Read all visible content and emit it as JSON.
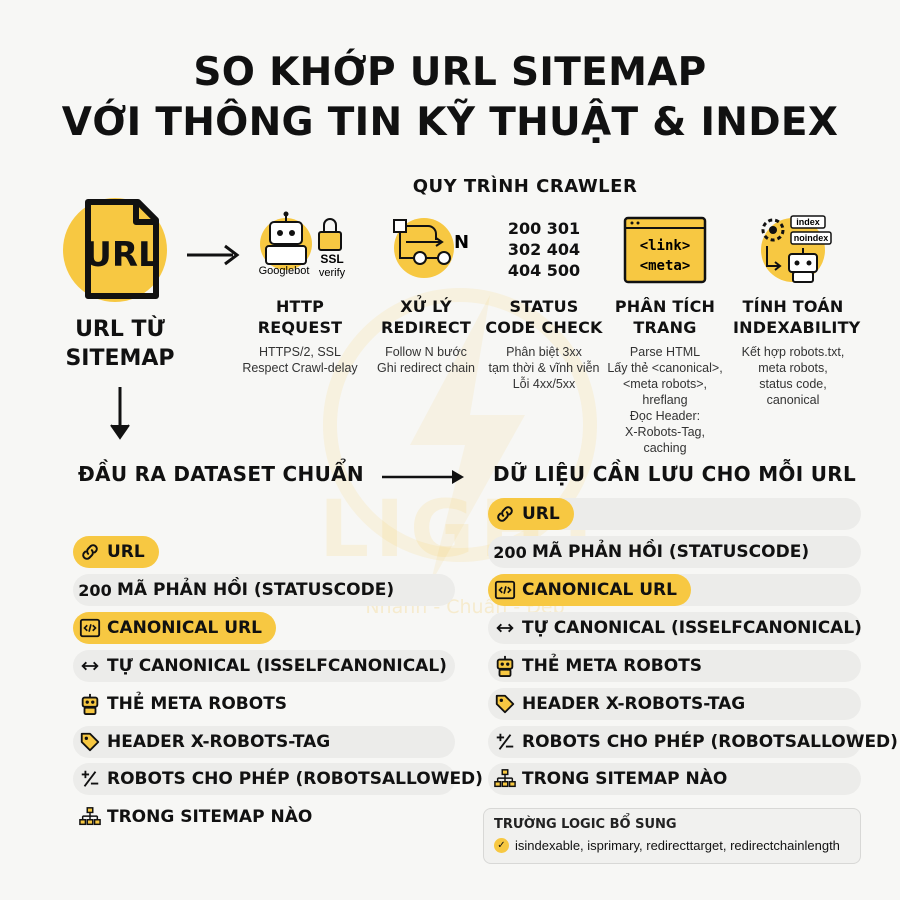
{
  "title": {
    "line1": "SO KHỚP URL SITEMAP",
    "line2": "VỚI THÔNG TIN KỸ THUẬT & INDEX"
  },
  "watermark": {
    "text": "LIGHT",
    "sub": "Nhanh - Chuẩn - Đẹp"
  },
  "source": {
    "icon_text": "URL",
    "label_line1": "URL TỪ",
    "label_line2": "SITEMAP"
  },
  "process": {
    "title": "QUY TRÌNH CRAWLER",
    "steps": [
      {
        "icon": "googlebot-ssl-icon",
        "icon_labels": [
          "Googlebot",
          "SSL",
          "verify"
        ],
        "title_line1": "HTTP",
        "title_line2": "REQUEST",
        "desc": [
          "HTTPS/2, SSL",
          "Respect Crawl-delay"
        ]
      },
      {
        "icon": "redirect-icon",
        "icon_labels": [
          "N"
        ],
        "title_line1": "XỬ LÝ",
        "title_line2": "REDIRECT",
        "desc": [
          "Follow N bước",
          "Ghi redirect chain"
        ]
      },
      {
        "icon": "status-codes",
        "codes": [
          "200 301",
          "302 404",
          "404 500"
        ],
        "title_line1": "STATUS",
        "title_line2": "CODE CHECK",
        "desc": [
          "Phân biệt 3xx",
          "tạm thời & vĩnh viễn",
          "Lỗi 4xx/5xx"
        ]
      },
      {
        "icon": "html-meta-icon",
        "icon_labels": [
          "<link>",
          "<meta>"
        ],
        "title_line1": "PHÂN TÍCH",
        "title_line2": "TRANG",
        "desc": [
          "Parse HTML",
          "Lấy thẻ <canonical>,",
          "<meta robots>, hreflang",
          "Đọc Header:",
          "X-Robots-Tag, caching"
        ]
      },
      {
        "icon": "indexability-icon",
        "icon_labels": [
          "index",
          "noindex"
        ],
        "title_line1": "TÍNH TOÁN",
        "title_line2": "INDEXABILITY",
        "desc": [
          "Kết hợp robots.txt,",
          "meta robots,",
          "status code,",
          "canonical"
        ]
      }
    ]
  },
  "output": {
    "title": "ĐẦU RA DATASET CHUẨN",
    "rows": [
      {
        "icon": "link-icon",
        "label": "URL",
        "highlight": true
      },
      {
        "num": "200",
        "label": "MÃ PHẢN HỒI (STATUSCODE)"
      },
      {
        "icon": "code-icon",
        "label": "CANONICAL URL",
        "highlight": true
      },
      {
        "icon": "arrows-icon",
        "label": "TỰ CANONICAL (ISSELFCANONICAL)"
      },
      {
        "icon": "robot-icon",
        "label": "THẺ META ROBOTS"
      },
      {
        "icon": "tag-icon",
        "label": "HEADER X-ROBOTS-TAG"
      },
      {
        "icon": "plus-minus-icon",
        "label": "ROBOTS CHO PHÉP (ROBOTSALLOWED)"
      },
      {
        "icon": "sitemap-icon",
        "label": "TRONG SITEMAP NÀO"
      }
    ]
  },
  "stored": {
    "title": "DỮ LIỆU CẦN LƯU CHO MỖI URL",
    "rows": [
      {
        "icon": "link-icon",
        "label": "URL",
        "highlight": true
      },
      {
        "num": "200",
        "label": "MÃ PHẢN HỒI (STATUSCODE)"
      },
      {
        "icon": "code-icon",
        "label": "CANONICAL URL",
        "highlight": true
      },
      {
        "icon": "arrows-icon",
        "label": "TỰ CANONICAL (ISSELFCANONICAL)"
      },
      {
        "icon": "robot-icon",
        "label": "THẺ META ROBOTS"
      },
      {
        "icon": "tag-icon",
        "label": "HEADER X-ROBOTS-TAG"
      },
      {
        "icon": "plus-minus-icon",
        "label": "ROBOTS CHO PHÉP (ROBOTSALLOWED)"
      },
      {
        "icon": "sitemap-icon",
        "label": "TRONG SITEMAP NÀO"
      }
    ],
    "logic": {
      "title": "TRƯỜNG LOGIC BỔ SUNG",
      "fields": "isindexable, isprimary, redirecttarget, redirectchainlength"
    }
  },
  "colors": {
    "accent": "#f7c842",
    "row_bg": "#ececea",
    "text": "#111111",
    "background": "#f7f7f5"
  }
}
